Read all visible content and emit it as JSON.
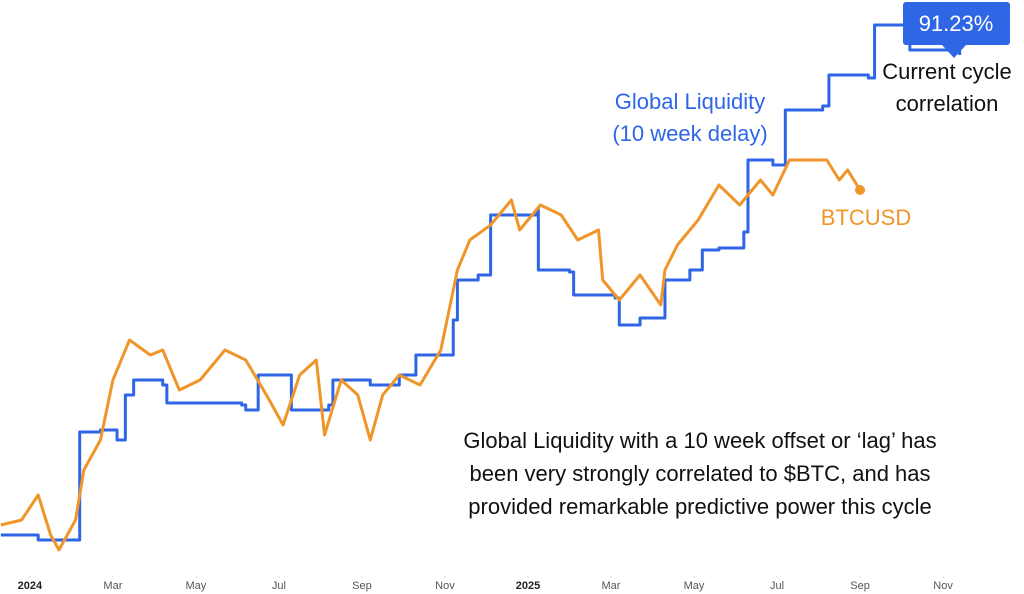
{
  "chart_data": {
    "type": "line",
    "xlim": [
      -0.72,
      23.95
    ],
    "ylim": [
      0,
      560
    ],
    "xticks": [
      {
        "value": 0,
        "label": "2024"
      },
      {
        "value": 2,
        "label": "Mar"
      },
      {
        "value": 4,
        "label": "May"
      },
      {
        "value": 6,
        "label": "Jul"
      },
      {
        "value": 8,
        "label": "Sep"
      },
      {
        "value": 10,
        "label": "Nov"
      },
      {
        "value": 12,
        "label": "2025"
      },
      {
        "value": 14,
        "label": "Mar"
      },
      {
        "value": 16,
        "label": "May"
      },
      {
        "value": 18,
        "label": "Jul"
      },
      {
        "value": 20,
        "label": "Sep"
      },
      {
        "value": 22,
        "label": "Nov"
      }
    ],
    "series": [
      {
        "name": "Global Liquidity",
        "color": "#2f66e6",
        "x": [
          -0.7,
          0.2,
          1.15,
          1.2,
          1.7,
          2.1,
          2.3,
          2.5,
          3.2,
          3.3,
          5.1,
          5.2,
          5.5,
          6.1,
          6.3,
          7.2,
          7.3,
          8.2,
          8.9,
          9.3,
          9.9,
          10.2,
          10.3,
          10.8,
          11.1,
          12.2,
          12.25,
          13.0,
          13.1,
          14.1,
          14.2,
          14.7,
          15.25,
          15.3,
          15.9,
          16.2,
          16.6,
          17.2,
          17.3,
          17.9,
          18.2,
          18.5,
          19.1,
          19.25,
          20.2,
          20.35,
          21.1,
          21.2,
          22.4
        ],
        "values": [
          35,
          30,
          30,
          138,
          140,
          130,
          175,
          190,
          185,
          167,
          165,
          160,
          195,
          195,
          160,
          165,
          190,
          185,
          195,
          215,
          215,
          250,
          290,
          295,
          355,
          360,
          300,
          298,
          275,
          272,
          245,
          252,
          252,
          290,
          300,
          320,
          322,
          338,
          410,
          405,
          460,
          460,
          464,
          495,
          492,
          545,
          548,
          520,
          515
        ]
      },
      {
        "name": "BTCUSD",
        "color": "#f0952a",
        "x": [
          -0.7,
          -0.2,
          0.2,
          0.5,
          0.7,
          1.1,
          1.3,
          1.7,
          2.0,
          2.4,
          2.9,
          3.2,
          3.6,
          4.1,
          4.7,
          5.2,
          5.7,
          6.1,
          6.5,
          6.9,
          7.1,
          7.5,
          7.9,
          8.2,
          8.5,
          8.9,
          9.4,
          9.9,
          10.3,
          10.6,
          11.1,
          11.6,
          11.8,
          12.3,
          12.8,
          13.2,
          13.7,
          13.8,
          14.2,
          14.7,
          15.2,
          15.3,
          15.6,
          16.1,
          16.6,
          17.1,
          17.6,
          17.9,
          18.3,
          18.8,
          19.2,
          19.5,
          19.7,
          20.0
        ],
        "values": [
          45,
          50,
          75,
          35,
          20,
          50,
          100,
          130,
          190,
          230,
          215,
          220,
          180,
          190,
          220,
          210,
          175,
          145,
          195,
          210,
          135,
          190,
          175,
          130,
          175,
          195,
          185,
          220,
          300,
          330,
          345,
          370,
          340,
          365,
          355,
          330,
          340,
          290,
          270,
          295,
          265,
          300,
          325,
          350,
          385,
          365,
          390,
          375,
          410,
          410,
          410,
          390,
          400,
          380
        ]
      }
    ],
    "annotations": [
      {
        "lines": [
          "Global Liquidity",
          "(10 week delay)"
        ]
      },
      {
        "lines": [
          "BTCUSD"
        ]
      },
      {
        "lines": [
          "91.23%"
        ]
      },
      {
        "lines": [
          "Current cycle",
          "correlation"
        ]
      },
      {
        "lines": [
          "Global Liquidity with a 10 week offset or ‘lag’ has",
          "been very strongly correlated to $BTC, and has",
          "provided remarkable predictive power this cycle"
        ]
      }
    ]
  }
}
